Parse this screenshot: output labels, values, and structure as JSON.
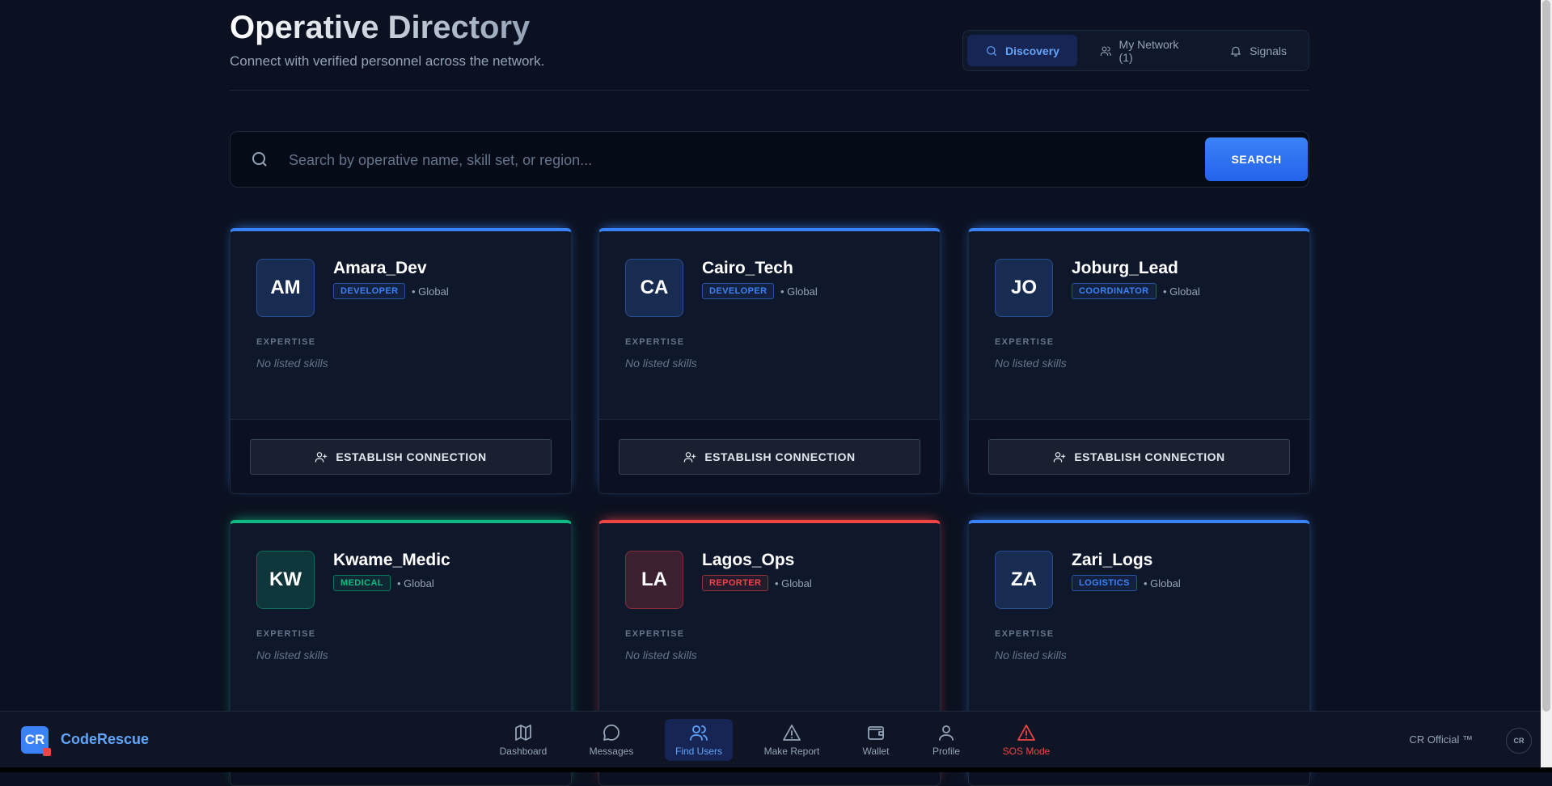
{
  "header": {
    "title": "Operative Directory",
    "subtitle": "Connect with verified personnel across the network."
  },
  "tabs": [
    {
      "label": "Discovery",
      "active": true
    },
    {
      "label": "My Network (1)",
      "active": false
    },
    {
      "label": "Signals",
      "active": false
    }
  ],
  "search": {
    "placeholder": "Search by operative name, skill set, or region...",
    "button": "SEARCH"
  },
  "cards": {
    "expertise_label": "EXPERTISE",
    "skills_empty": "No listed skills",
    "action": "ESTABLISH CONNECTION",
    "users": [
      {
        "initials": "AM",
        "name": "Amara_Dev",
        "role": "DEVELOPER",
        "region": "• Global",
        "color": "#3b82f6"
      },
      {
        "initials": "CA",
        "name": "Cairo_Tech",
        "role": "DEVELOPER",
        "region": "• Global",
        "color": "#3b82f6"
      },
      {
        "initials": "JO",
        "name": "Joburg_Lead",
        "role": "COORDINATOR",
        "region": "• Global",
        "color": "#3b82f6"
      },
      {
        "initials": "KW",
        "name": "Kwame_Medic",
        "role": "MEDICAL",
        "region": "• Global",
        "color": "#10b981"
      },
      {
        "initials": "LA",
        "name": "Lagos_Ops",
        "role": "REPORTER",
        "region": "• Global",
        "color": "#ef4444"
      },
      {
        "initials": "ZA",
        "name": "Zari_Logs",
        "role": "LOGISTICS",
        "region": "• Global",
        "color": "#3b82f6"
      }
    ]
  },
  "nav": {
    "brand": "CodeRescue",
    "logo": "CR",
    "items": [
      {
        "label": "Dashboard"
      },
      {
        "label": "Messages"
      },
      {
        "label": "Find Users",
        "active": true
      },
      {
        "label": "Make Report"
      },
      {
        "label": "Wallet"
      },
      {
        "label": "Profile"
      },
      {
        "label": "SOS Mode",
        "alert": true
      }
    ],
    "official": "CR Official ™",
    "avatar": "CR"
  }
}
